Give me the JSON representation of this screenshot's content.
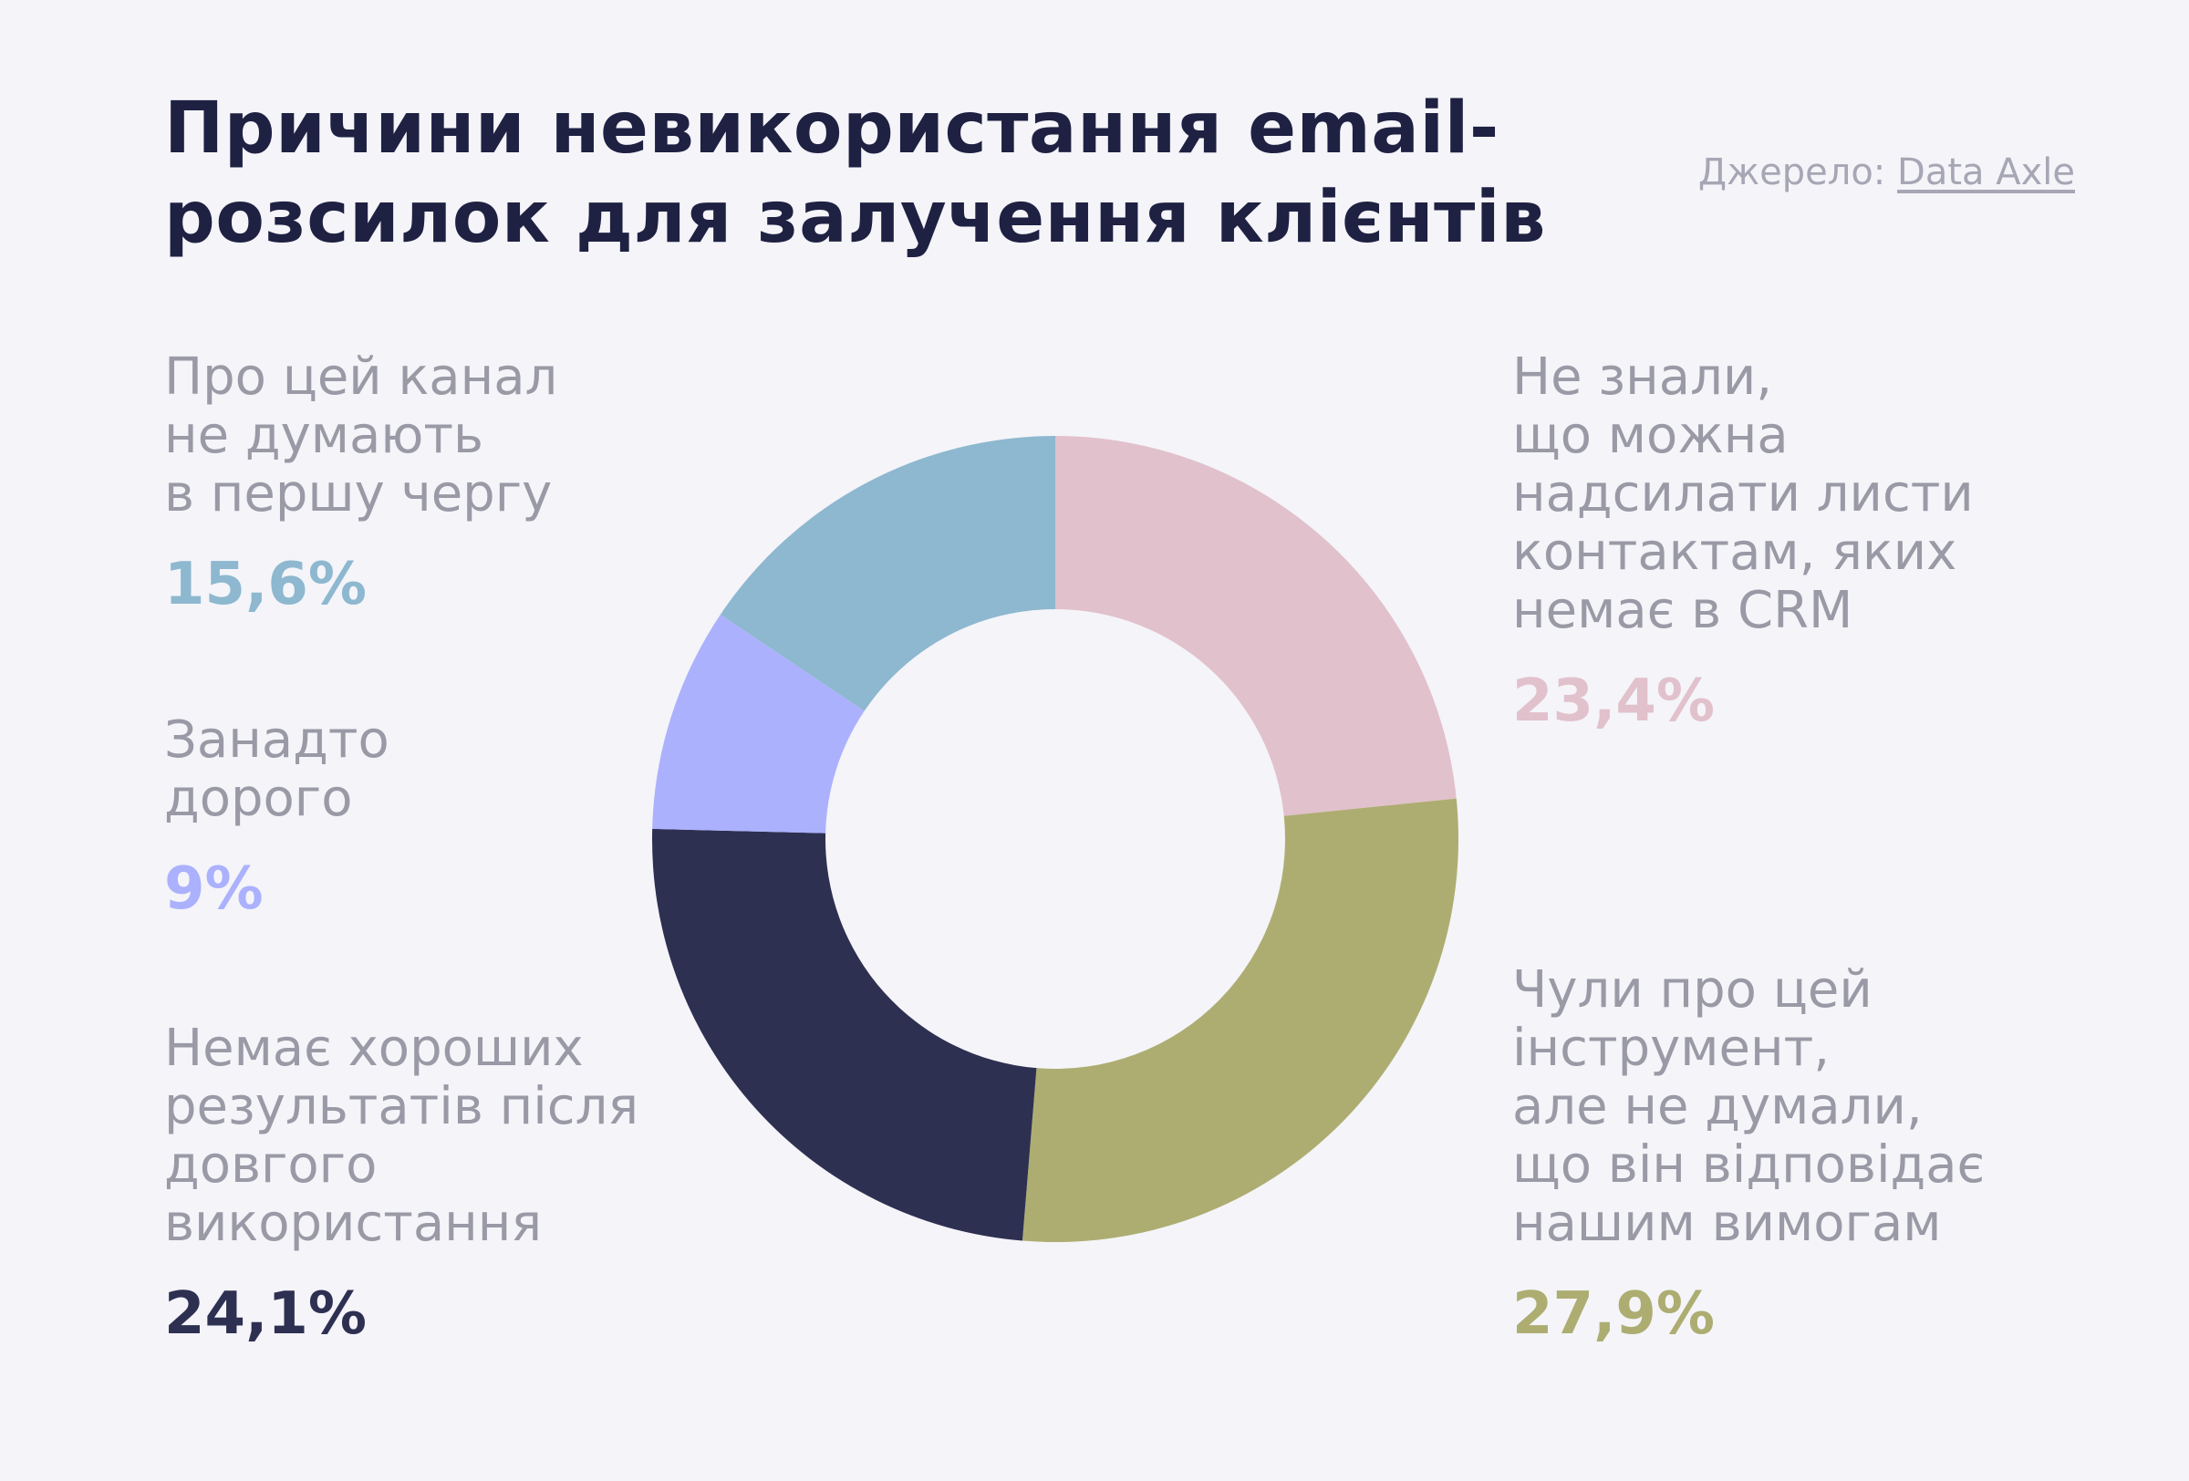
{
  "title": "Причини невикористання email-розсилок для залучення клієнтів",
  "source": {
    "prefix": "Джерело:",
    "name": "Data Axle"
  },
  "chart_data": {
    "type": "pie",
    "donut": true,
    "title": "Причини невикористання email-розсилок для залучення клієнтів",
    "slices": [
      {
        "label": "Не знали, що можна надсилати листи контактам, яких немає в CRM",
        "value": 23.4,
        "value_label": "23,4%",
        "color": "#e1c1cb"
      },
      {
        "label": "Чули про цей інструмент, але не думали, що він відповідає нашим вимогам",
        "value": 27.9,
        "value_label": "27,9%",
        "color": "#adad72"
      },
      {
        "label": "Немає хороших результатів після довгого використання",
        "value": 24.1,
        "value_label": "24,1%",
        "color": "#2e3052"
      },
      {
        "label": "Занадто дорого",
        "value": 9,
        "value_label": "9%",
        "color": "#abb1fd"
      },
      {
        "label": "Про цей канал не думають в першу чергу",
        "value": 15.6,
        "value_label": "15,6%",
        "color": "#8db8cf"
      }
    ]
  },
  "labels": {
    "channel": {
      "text": "Про цей канал\nне думають\nв першу чергу",
      "pct": "15,6%",
      "color": "#8db8cf"
    },
    "expensive": {
      "text": "Занадто\nдорого",
      "pct": "9%",
      "color": "#abb1fd"
    },
    "results": {
      "text": "Немає хороших\nрезультатів після\nдовгого\nвикористання",
      "pct": "24,1%",
      "color": "#2e3052"
    },
    "crm": {
      "text": "Не знали,\nщо можна\nнадсилати листи\nконтактам, яких\nнемає в CRM",
      "pct": "23,4%",
      "color": "#e1c1cb"
    },
    "tool": {
      "text": "Чули про цей\nінструмент,\nале не думали,\nщо він відповідає\nнашим вимогам",
      "pct": "27,9%",
      "color": "#adad72"
    }
  }
}
